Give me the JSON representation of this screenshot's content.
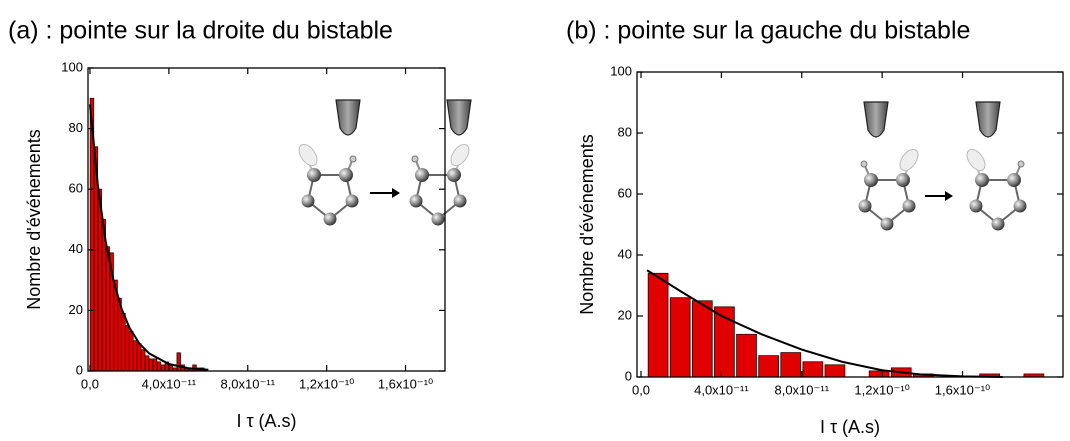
{
  "chart_data": [
    {
      "type": "histogram",
      "title": "(a) : pointe sur la droite du bistable",
      "xlabel": "I τ (A.s)",
      "ylabel": "Nombre d'événements",
      "bins": [
        0,
        2e-12,
        4e-12,
        6e-12,
        8e-12,
        1e-11,
        1.2e-11,
        1.4e-11,
        1.6e-11,
        1.8e-11,
        2e-11,
        2.2e-11,
        2.4e-11,
        2.6e-11,
        2.8e-11,
        3e-11,
        3.2e-11,
        3.4e-11,
        3.6e-11,
        3.8e-11,
        4e-11,
        4.2e-11,
        4.4e-11,
        4.6e-11,
        4.8e-11,
        5e-11,
        5.2e-11,
        5.4e-11,
        5.6e-11,
        5.8e-11
      ],
      "values": [
        90,
        74,
        60,
        50,
        41,
        39,
        30,
        24,
        19,
        15,
        13,
        10,
        9,
        7,
        5,
        4,
        4,
        3,
        2,
        3,
        2,
        1,
        6,
        2,
        1,
        1,
        2,
        1,
        1
      ],
      "color": "#e00000",
      "fit": {
        "x": [
          0,
          4e-12,
          8e-12,
          1.2e-11,
          1.6e-11,
          2e-11,
          2.5e-11,
          3e-11,
          4e-11,
          5e-11,
          6e-11
        ],
        "values": [
          88,
          61.2,
          42.6,
          29.6,
          20.6,
          14.3,
          9.1,
          5.8,
          2.3,
          0.9,
          0.4
        ],
        "color": "#000000"
      },
      "xlim": [
        -1e-12,
        1.8e-10
      ],
      "ylim": [
        0,
        100
      ],
      "xticks": [
        {
          "value": 0,
          "label": "0,0"
        },
        {
          "value": 4e-11,
          "label": "4,0x10⁻¹¹"
        },
        {
          "value": 8e-11,
          "label": "8,0x10⁻¹¹"
        },
        {
          "value": 1.2e-10,
          "label": "1,2x10⁻¹⁰"
        },
        {
          "value": 1.6e-10,
          "label": "1,6x10⁻¹⁰"
        }
      ],
      "yticks": [
        0,
        20,
        40,
        60,
        80,
        100
      ]
    },
    {
      "type": "histogram",
      "title": "(b) : pointe sur la gauche du bistable",
      "xlabel": "I τ (A.s)",
      "ylabel": "Nombre d'événements",
      "bins": [
        3e-12,
        1.4e-11,
        2.5e-11,
        3.6e-11,
        4.7e-11,
        5.8e-11,
        6.9e-11,
        8e-11,
        9.1e-11,
        1.02e-10,
        1.13e-10,
        1.24e-10,
        1.35e-10,
        1.46e-10,
        1.57e-10,
        1.68e-10,
        1.79e-10,
        1.9e-10,
        2.01e-10
      ],
      "values": [
        34,
        26,
        25,
        23,
        14,
        7,
        8,
        5,
        4,
        0,
        2,
        3,
        1,
        0,
        0,
        1,
        0,
        1
      ],
      "color": "#e00000",
      "fit": {
        "x": [
          3e-12,
          2e-11,
          4e-11,
          6e-11,
          8e-11,
          1e-10,
          1.2e-10,
          1.4e-10,
          1.6e-10,
          1.8e-10
        ],
        "values": [
          35,
          28,
          20,
          14,
          9,
          5,
          2.2,
          0.8,
          0.2,
          0
        ],
        "color": "#000000"
      },
      "xlim": [
        -2e-12,
        2.1e-10
      ],
      "ylim": [
        0,
        100
      ],
      "xticks": [
        {
          "value": 0,
          "label": "0,0"
        },
        {
          "value": 4e-11,
          "label": "4,0x10⁻¹¹"
        },
        {
          "value": 8e-11,
          "label": "8,0x10⁻¹¹"
        },
        {
          "value": 1.2e-10,
          "label": "1,2x10⁻¹⁰"
        },
        {
          "value": 1.6e-10,
          "label": "1,6x10⁻¹⁰"
        }
      ],
      "yticks": [
        0,
        20,
        40,
        60,
        80,
        100
      ]
    }
  ]
}
